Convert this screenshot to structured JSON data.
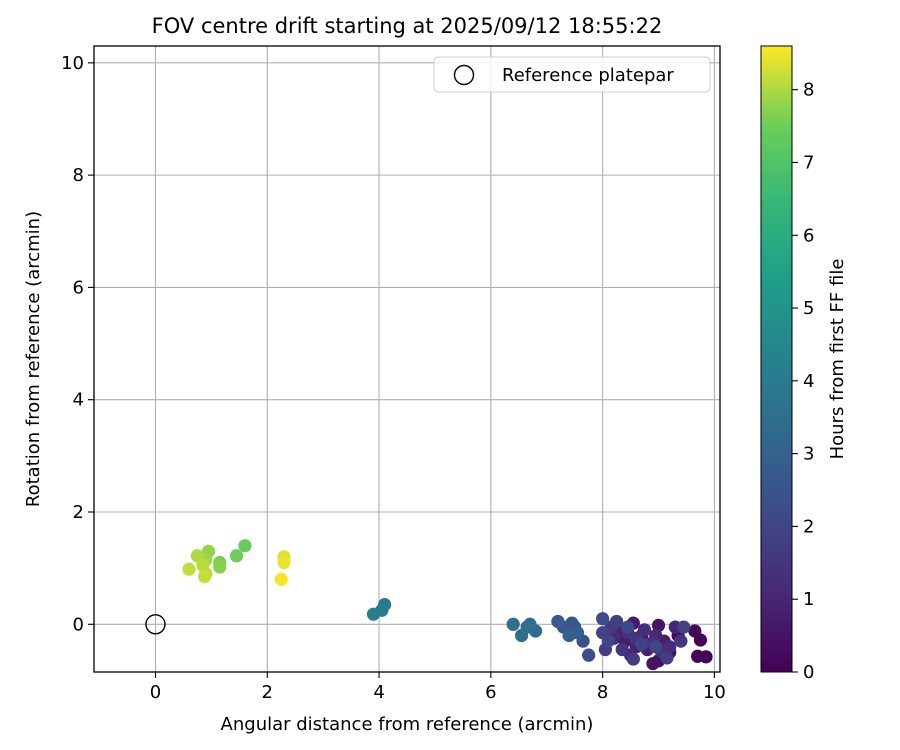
{
  "chart_data": {
    "type": "scatter",
    "title": "FOV centre drift starting at 2025/09/12 18:55:22",
    "xlabel": "Angular distance from reference (arcmin)",
    "ylabel": "Rotation from reference (arcmin)",
    "xlim": [
      -1.1,
      10.1
    ],
    "ylim": [
      -0.85,
      10.3
    ],
    "xticks": [
      0,
      2,
      4,
      6,
      8,
      10
    ],
    "yticks": [
      0,
      2,
      4,
      6,
      8,
      10
    ],
    "grid": true,
    "legend": {
      "position": "top-right",
      "entries": [
        "Reference platepar"
      ]
    },
    "reference_point": {
      "x": 0,
      "y": 0,
      "label": "Reference platepar"
    },
    "colorbar": {
      "label": "Hours from first FF file",
      "range": [
        0,
        8.6
      ],
      "ticks": [
        0,
        1,
        2,
        3,
        4,
        5,
        6,
        7,
        8
      ],
      "colormap": "viridis"
    },
    "points": [
      {
        "x": 9.75,
        "y": -0.28,
        "t": 0.05
      },
      {
        "x": 9.85,
        "y": -0.58,
        "t": 0.1
      },
      {
        "x": 9.7,
        "y": -0.57,
        "t": 0.15
      },
      {
        "x": 9.65,
        "y": -0.12,
        "t": 0.2
      },
      {
        "x": 9.35,
        "y": -0.2,
        "t": 0.3
      },
      {
        "x": 9.2,
        "y": -0.5,
        "t": 0.4
      },
      {
        "x": 9.0,
        "y": -0.65,
        "t": 0.45
      },
      {
        "x": 8.9,
        "y": -0.7,
        "t": 0.5
      },
      {
        "x": 9.0,
        "y": -0.02,
        "t": 0.55
      },
      {
        "x": 8.7,
        "y": -0.2,
        "t": 0.6
      },
      {
        "x": 8.55,
        "y": 0.02,
        "t": 0.7
      },
      {
        "x": 8.4,
        "y": -0.3,
        "t": 0.75
      },
      {
        "x": 9.1,
        "y": -0.3,
        "t": 0.8
      },
      {
        "x": 8.8,
        "y": -0.45,
        "t": 0.85
      },
      {
        "x": 8.6,
        "y": -0.4,
        "t": 0.9
      },
      {
        "x": 8.3,
        "y": -0.12,
        "t": 0.95
      },
      {
        "x": 9.3,
        "y": -0.05,
        "t": 1.0
      },
      {
        "x": 8.95,
        "y": -0.2,
        "t": 1.05
      },
      {
        "x": 8.5,
        "y": -0.55,
        "t": 1.1
      },
      {
        "x": 8.2,
        "y": -0.25,
        "t": 1.15
      },
      {
        "x": 9.2,
        "y": -0.4,
        "t": 1.2
      },
      {
        "x": 8.75,
        "y": -0.1,
        "t": 1.25
      },
      {
        "x": 8.45,
        "y": -0.15,
        "t": 1.3
      },
      {
        "x": 9.05,
        "y": -0.48,
        "t": 1.35
      },
      {
        "x": 8.9,
        "y": -0.32,
        "t": 1.4
      },
      {
        "x": 8.6,
        "y": -0.25,
        "t": 1.45
      },
      {
        "x": 8.35,
        "y": -0.45,
        "t": 1.5
      },
      {
        "x": 9.4,
        "y": -0.3,
        "t": 1.55
      },
      {
        "x": 8.15,
        "y": -0.05,
        "t": 1.6
      },
      {
        "x": 8.05,
        "y": -0.45,
        "t": 1.65
      },
      {
        "x": 8.55,
        "y": -0.62,
        "t": 1.7
      },
      {
        "x": 9.15,
        "y": -0.6,
        "t": 1.75
      },
      {
        "x": 8.25,
        "y": 0.05,
        "t": 1.8
      },
      {
        "x": 8.7,
        "y": -0.35,
        "t": 1.85
      },
      {
        "x": 9.45,
        "y": -0.05,
        "t": 1.9
      },
      {
        "x": 8.0,
        "y": -0.15,
        "t": 1.95
      },
      {
        "x": 8.95,
        "y": -0.4,
        "t": 2.0
      },
      {
        "x": 8.1,
        "y": -0.3,
        "t": 2.05
      },
      {
        "x": 8.45,
        "y": -0.05,
        "t": 2.1
      },
      {
        "x": 8.0,
        "y": 0.1,
        "t": 2.2
      },
      {
        "x": 7.75,
        "y": -0.55,
        "t": 2.25
      },
      {
        "x": 7.65,
        "y": -0.3,
        "t": 2.35
      },
      {
        "x": 7.5,
        "y": -0.05,
        "t": 2.45
      },
      {
        "x": 7.45,
        "y": 0.02,
        "t": 2.55
      },
      {
        "x": 7.3,
        "y": -0.05,
        "t": 2.65
      },
      {
        "x": 7.2,
        "y": 0.05,
        "t": 2.75
      },
      {
        "x": 7.55,
        "y": -0.15,
        "t": 2.85
      },
      {
        "x": 7.4,
        "y": -0.2,
        "t": 2.95
      },
      {
        "x": 6.8,
        "y": -0.12,
        "t": 3.3
      },
      {
        "x": 6.65,
        "y": -0.05,
        "t": 3.4
      },
      {
        "x": 6.55,
        "y": -0.2,
        "t": 3.5
      },
      {
        "x": 6.4,
        "y": 0.0,
        "t": 3.6
      },
      {
        "x": 6.7,
        "y": 0.0,
        "t": 3.55
      },
      {
        "x": 4.1,
        "y": 0.35,
        "t": 3.9
      },
      {
        "x": 4.05,
        "y": 0.25,
        "t": 4.0
      },
      {
        "x": 3.9,
        "y": 0.18,
        "t": 4.1
      },
      {
        "x": 1.6,
        "y": 1.4,
        "t": 7.4
      },
      {
        "x": 1.45,
        "y": 1.22,
        "t": 7.5
      },
      {
        "x": 1.15,
        "y": 1.1,
        "t": 7.6
      },
      {
        "x": 1.15,
        "y": 1.02,
        "t": 7.7
      },
      {
        "x": 0.95,
        "y": 1.3,
        "t": 7.8
      },
      {
        "x": 0.9,
        "y": 1.15,
        "t": 7.9
      },
      {
        "x": 0.75,
        "y": 1.22,
        "t": 8.0
      },
      {
        "x": 0.9,
        "y": 0.9,
        "t": 8.05
      },
      {
        "x": 0.85,
        "y": 1.05,
        "t": 8.1
      },
      {
        "x": 0.6,
        "y": 0.98,
        "t": 8.15
      },
      {
        "x": 0.88,
        "y": 0.85,
        "t": 8.2
      },
      {
        "x": 2.3,
        "y": 1.2,
        "t": 8.35
      },
      {
        "x": 2.3,
        "y": 1.1,
        "t": 8.45
      },
      {
        "x": 2.25,
        "y": 0.8,
        "t": 8.55
      }
    ]
  }
}
